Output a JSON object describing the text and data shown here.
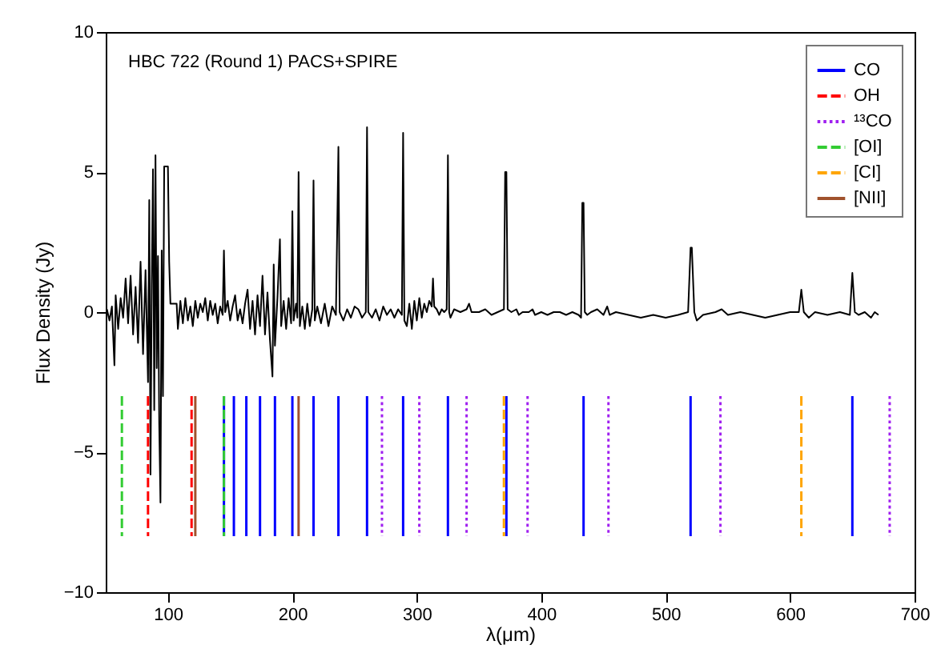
{
  "chart_data": {
    "type": "line",
    "title": "HBC 722 (Round 1) PACS+SPIRE",
    "xlabel": "λ(μm)",
    "ylabel": "Flux Density (Jy)",
    "xlim": [
      50,
      700
    ],
    "xticks": [
      100,
      200,
      300,
      400,
      500,
      600,
      700
    ],
    "ylim": [
      -10,
      10
    ],
    "yticks": [
      -10,
      -5,
      0,
      5,
      10
    ],
    "legend": "top right",
    "series": [
      {
        "color": "#000000",
        "line_style": "solid",
        "x": [
          51,
          53,
          55,
          57,
          58,
          60,
          62,
          64,
          66,
          68,
          70,
          72,
          74,
          76,
          78,
          80,
          82,
          84,
          85,
          86,
          87,
          88,
          89,
          90,
          91,
          92,
          93,
          94,
          95,
          96,
          97,
          100,
          101,
          102,
          107,
          108,
          110,
          112,
          114,
          116,
          118,
          120,
          122,
          124,
          126,
          128,
          130,
          132,
          134,
          136,
          138,
          140,
          142,
          144,
          145,
          146,
          148,
          150,
          152,
          154,
          156,
          158,
          160,
          162,
          164,
          166,
          168,
          170,
          172,
          174,
          176,
          178,
          180,
          182,
          184,
          185,
          186,
          188,
          190,
          191,
          193,
          195,
          197,
          199,
          200,
          201,
          203,
          204,
          205,
          206,
          208,
          210,
          212,
          214,
          216,
          217,
          218,
          220,
          223,
          226,
          229,
          232,
          235,
          237,
          238,
          241,
          244,
          247,
          250,
          253,
          256,
          259,
          260,
          261,
          264,
          267,
          270,
          273,
          276,
          279,
          282,
          285,
          288,
          289,
          290,
          292,
          294,
          296,
          298,
          300,
          302,
          304,
          306,
          308,
          310,
          312,
          313,
          314,
          316,
          318,
          320,
          322,
          324,
          325,
          326,
          327,
          330,
          335,
          340,
          342,
          344,
          350,
          355,
          360,
          365,
          370,
          371,
          372,
          373,
          376,
          380,
          382,
          385,
          390,
          393,
          395,
          400,
          405,
          410,
          415,
          420,
          425,
          430,
          432,
          433,
          434,
          435,
          437,
          440,
          445,
          450,
          453,
          455,
          460,
          470,
          480,
          490,
          500,
          510,
          518,
          520,
          521,
          523,
          525,
          530,
          540,
          545,
          550,
          560,
          570,
          580,
          590,
          600,
          607,
          609,
          611,
          615,
          620,
          630,
          640,
          648,
          650,
          652,
          655,
          660,
          665,
          668,
          671
        ],
        "values": [
          0.1,
          -0.3,
          0.2,
          -1.9,
          0.6,
          -0.6,
          0.5,
          -0.2,
          1.2,
          -0.4,
          1.3,
          -0.8,
          0.9,
          -1.1,
          1.8,
          -1.5,
          1.5,
          -2.5,
          4.0,
          -5.8,
          1.0,
          5.1,
          -3.5,
          5.6,
          -2.0,
          2.0,
          -4.0,
          -6.8,
          2.2,
          -3.0,
          5.2,
          5.2,
          1.8,
          0.3,
          0.3,
          -0.6,
          0.4,
          -0.4,
          0.5,
          -0.3,
          0.2,
          -0.5,
          0.4,
          -0.2,
          0.3,
          0.0,
          0.5,
          -0.3,
          0.4,
          -0.1,
          0.3,
          -0.4,
          0.2,
          -0.1,
          2.2,
          0.0,
          0.4,
          -0.3,
          0.2,
          0.6,
          -0.3,
          0.1,
          -0.4,
          0.3,
          0.8,
          -0.6,
          0.4,
          -0.8,
          0.6,
          -0.5,
          1.3,
          -0.8,
          0.7,
          -1.0,
          -2.3,
          1.7,
          -1.2,
          0.5,
          2.6,
          -0.5,
          0.4,
          -0.6,
          0.5,
          -0.4,
          3.6,
          -0.3,
          0.3,
          -0.2,
          5.0,
          -0.5,
          0.2,
          -0.6,
          0.3,
          -0.5,
          0.1,
          4.7,
          -0.3,
          0.2,
          -0.4,
          0.3,
          -0.5,
          0.2,
          -0.1,
          5.9,
          0.0,
          -0.3,
          0.1,
          -0.2,
          0.2,
          0.1,
          -0.2,
          0.0,
          6.6,
          0.0,
          -0.2,
          0.1,
          -0.3,
          0.2,
          -0.1,
          0.1,
          -0.2,
          0.1,
          -0.1,
          6.4,
          -0.3,
          -0.5,
          0.3,
          -0.6,
          0.4,
          -0.3,
          0.5,
          -0.2,
          0.3,
          0.0,
          0.4,
          0.2,
          1.2,
          0.2,
          0.1,
          -0.1,
          0.1,
          0.0,
          0.1,
          5.6,
          0.0,
          -0.2,
          0.1,
          0.0,
          0.1,
          0.3,
          0.0,
          0.0,
          0.1,
          -0.1,
          0.0,
          0.1,
          5.0,
          5.0,
          0.1,
          0.0,
          0.1,
          -0.1,
          0.0,
          0.0,
          0.1,
          -0.1,
          0.0,
          -0.1,
          0.0,
          0.0,
          -0.1,
          0.0,
          -0.1,
          -0.2,
          3.9,
          3.9,
          0.0,
          -0.1,
          0.0,
          0.1,
          -0.1,
          0.2,
          -0.1,
          0.0,
          -0.1,
          -0.2,
          -0.1,
          -0.2,
          -0.1,
          0.0,
          2.3,
          2.3,
          0.0,
          -0.3,
          -0.1,
          0.0,
          0.1,
          -0.1,
          0.0,
          -0.1,
          -0.2,
          -0.1,
          0.0,
          0.0,
          0.8,
          0.0,
          -0.2,
          0.0,
          -0.1,
          0.0,
          -0.1,
          1.4,
          0.0,
          -0.1,
          0.0,
          -0.2,
          0.0,
          -0.1
        ]
      },
      {
        "name": "CO",
        "color": "#0000ff",
        "line_style": "solid",
        "x": [
          145,
          145,
          null,
          153,
          153,
          null,
          163,
          163,
          null,
          174,
          174,
          null,
          186,
          186,
          null,
          200,
          200,
          null,
          217,
          217,
          null,
          237,
          237,
          null,
          260,
          260,
          null,
          289,
          289,
          null,
          325,
          325,
          null,
          372,
          372,
          null,
          434,
          434,
          null,
          520,
          520,
          null,
          650,
          650
        ],
        "values": [
          -3,
          -8,
          null,
          -3,
          -8,
          null,
          -3,
          -8,
          null,
          -3,
          -8,
          null,
          -3,
          -8,
          null,
          -3,
          -8,
          null,
          -3,
          -8,
          null,
          -3,
          -8,
          null,
          -3,
          -8,
          null,
          -3,
          -8,
          null,
          -3,
          -8,
          null,
          -3,
          -8,
          null,
          -3,
          -8,
          null,
          -3,
          -8,
          null,
          -3,
          -8
        ]
      },
      {
        "name": "OH",
        "color": "#ff0000",
        "line_style": "dashed",
        "x": [
          84,
          84,
          null,
          119,
          119
        ],
        "values": [
          -3,
          -8,
          null,
          -3,
          -8
        ]
      },
      {
        "name": "¹³CO",
        "color": "#a020f0",
        "line_style": "dotted",
        "x": [
          272,
          272,
          null,
          302,
          302,
          null,
          340,
          340,
          null,
          389,
          389,
          null,
          454,
          454,
          null,
          544,
          544,
          null,
          680,
          680
        ],
        "values": [
          -3,
          -8,
          null,
          -3,
          -8,
          null,
          -3,
          -8,
          null,
          -3,
          -8,
          null,
          -3,
          -8,
          null,
          -3,
          -8,
          null,
          -3,
          -8
        ]
      },
      {
        "name": "[OI]",
        "color": "#33cc33",
        "line_style": "dashed",
        "x": [
          63,
          63,
          null,
          145,
          145
        ],
        "values": [
          -3,
          -8,
          null,
          -3,
          -8
        ]
      },
      {
        "name": "[CI]",
        "color": "#ffa500",
        "line_style": "dashed",
        "x": [
          370,
          370,
          null,
          609,
          609
        ],
        "values": [
          -3,
          -8,
          null,
          -3,
          -8
        ]
      },
      {
        "name": "[NII]",
        "color": "#a0522d",
        "line_style": "solid",
        "x": [
          122,
          122,
          null,
          205,
          205
        ],
        "values": [
          -3,
          -8,
          null,
          -3,
          -8
        ]
      }
    ]
  }
}
